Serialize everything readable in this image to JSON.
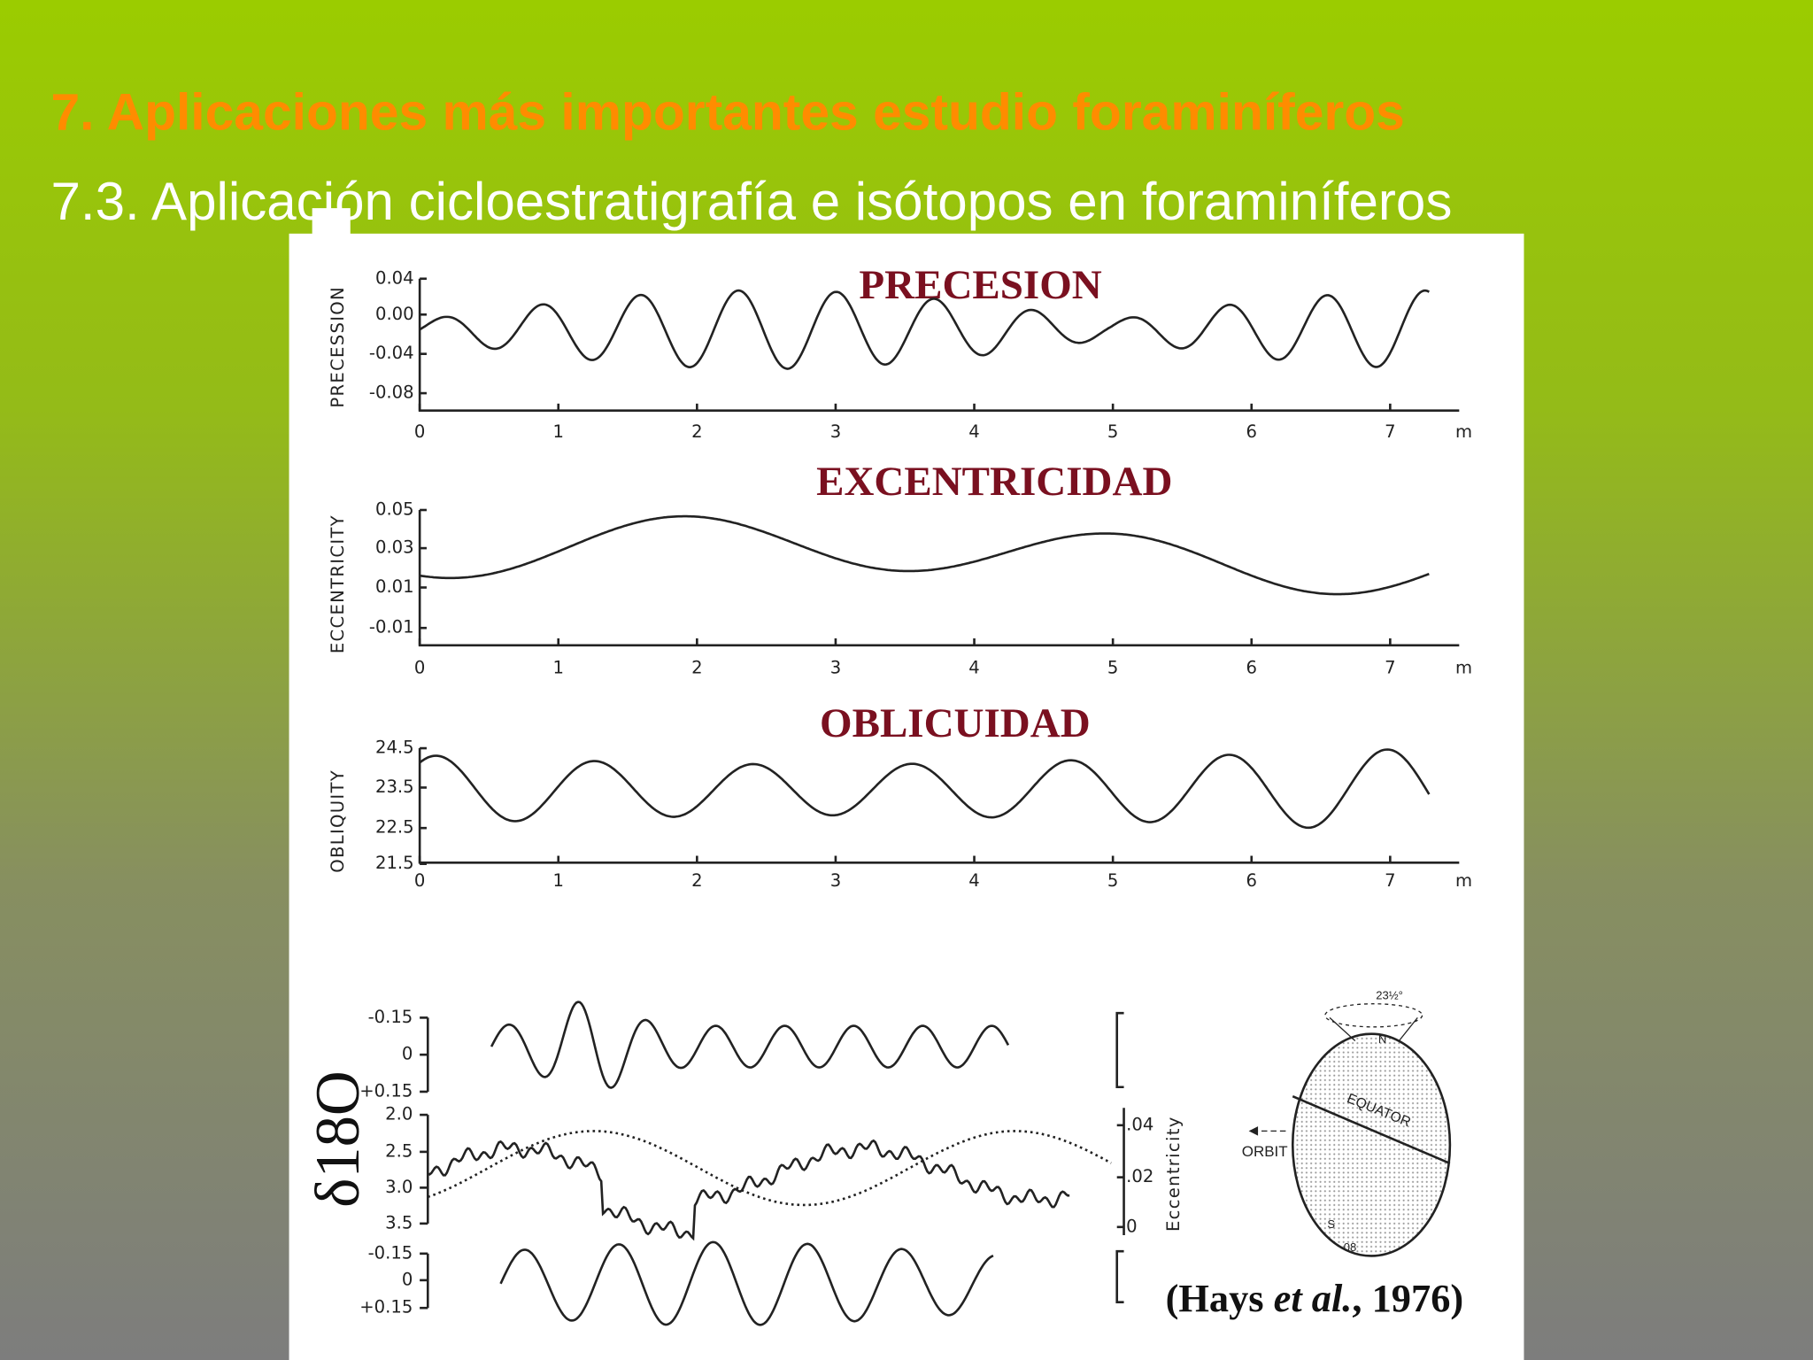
{
  "title": "7. Aplicaciones más importantes estudio foraminíferos",
  "subtitle": "7.3. Aplicación cicloestratigrafía e isótopos en foraminíferos",
  "figure": {
    "panels": [
      {
        "heading": "PRECESION",
        "axis_label": "PRECESSION",
        "yticks": [
          "0.04",
          "0.00",
          "-0.04",
          "-0.08"
        ],
        "xticks": [
          "0",
          "1",
          "2",
          "3",
          "4",
          "5",
          "6",
          "7"
        ],
        "x_unit": "m"
      },
      {
        "heading": "EXCENTRICIDAD",
        "axis_label": "ECCENTRICITY",
        "yticks": [
          "0.05",
          "0.03",
          "0.01",
          "-0.01"
        ],
        "xticks": [
          "0",
          "1",
          "2",
          "3",
          "4",
          "5",
          "6",
          "7"
        ],
        "x_unit": "m"
      },
      {
        "heading": "OBLICUIDAD",
        "axis_label": "OBLIQUITY",
        "yticks": [
          "24.5",
          "23.5",
          "22.5",
          "21.5"
        ],
        "xticks": [
          "0",
          "1",
          "2",
          "3",
          "4",
          "5",
          "6",
          "7"
        ],
        "x_unit": "m"
      }
    ],
    "isotope_panel": {
      "y_label": "δ18O",
      "top_ticks": [
        "-0.15",
        "0",
        "+0.15"
      ],
      "middle_ticks": [
        "2.0",
        "2.5",
        "3.0",
        "3.5"
      ],
      "bottom_ticks": [
        "-0.15",
        "0",
        "+0.15"
      ],
      "right_ticks": [
        ".04",
        ".02",
        "0"
      ],
      "right_label": "Eccentricity"
    },
    "diagram": {
      "orbit": "ORBIT",
      "equator": "EQUATOR",
      "north": "N",
      "south": "S",
      "tilt": "23½°",
      "angle": "08"
    },
    "citation": {
      "author": "(Hays ",
      "etal": "et al.",
      "year": ", 1976)"
    }
  }
}
